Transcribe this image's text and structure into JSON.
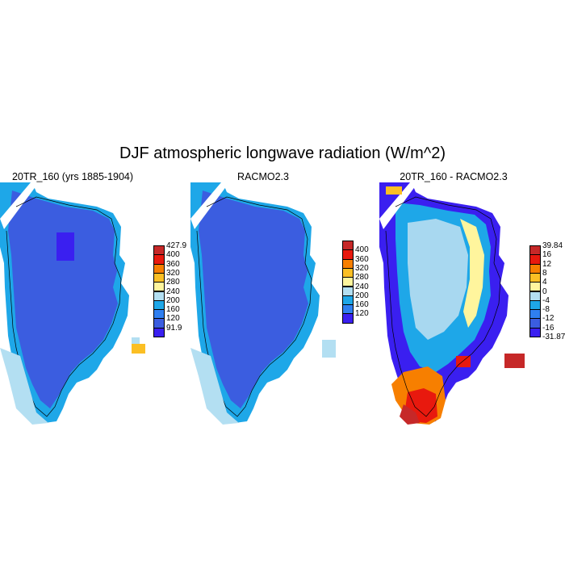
{
  "figure": {
    "title": "DJF atmospheric longwave radiation (W/m^2)"
  },
  "panels": [
    {
      "id": "model",
      "title": "20TR_160 (yrs 1885-1904)",
      "colorbar": {
        "labels": [
          "427.9",
          "400",
          "360",
          "320",
          "280",
          "240",
          "200",
          "160",
          "120",
          "91.9"
        ],
        "colors": [
          "#c62828",
          "#e8190e",
          "#f77f00",
          "#fbbf24",
          "#fff59d",
          "#b3dff2",
          "#1ea7e8",
          "#2f7ff0",
          "#3b5de0",
          "#3a1ff0"
        ]
      }
    },
    {
      "id": "racmo",
      "title": "RACMO2.3",
      "colorbar": {
        "labels": [
          "400",
          "360",
          "320",
          "280",
          "240",
          "200",
          "160",
          "120"
        ],
        "colors": [
          "#c62828",
          "#e8190e",
          "#f77f00",
          "#fbbf24",
          "#fff59d",
          "#b3dff2",
          "#1ea7e8",
          "#2f7ff0",
          "#3a1ff0"
        ]
      }
    },
    {
      "id": "diff",
      "title": "20TR_160 - RACMO2.3",
      "colorbar": {
        "labels": [
          "39.84",
          "16",
          "12",
          "8",
          "4",
          "0",
          "-4",
          "-8",
          "-12",
          "-16",
          "-31.87"
        ],
        "colors": [
          "#c62828",
          "#e8190e",
          "#f77f00",
          "#fbbf24",
          "#fff59d",
          "#b3dff2",
          "#1ea7e8",
          "#2f7ff0",
          "#3b5de0",
          "#3a1ff0"
        ]
      }
    }
  ],
  "palette": {
    "ice_sheet_model": "#3b5de0",
    "ice_sheet_racmo": "#3b5de0",
    "coast_light": "#b3dff2",
    "coast_mid": "#1ea7e8",
    "min": "#3a1ff0",
    "warm": "#fbbf24",
    "hot": "#e8190e",
    "deep_red": "#c62828",
    "orange": "#f77f00",
    "yellow": "#fff59d",
    "interior_light": "#a8d8f0"
  }
}
